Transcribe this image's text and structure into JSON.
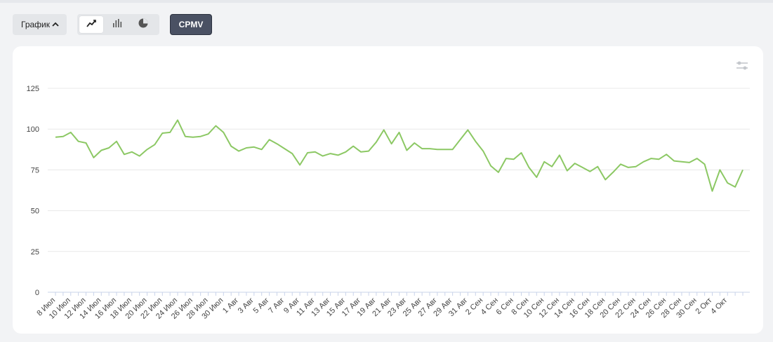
{
  "toolbar": {
    "view_label": "График",
    "chart_modes": [
      "line-chart-icon",
      "bar-chart-icon",
      "pie-chart-icon"
    ],
    "active_mode": "line-chart-icon",
    "metric_label": "CPMV"
  },
  "colors": {
    "line": "#8cc864",
    "grid": "#e8e8e8",
    "axis": "#c9d3ea",
    "metric_bg": "#4a5163"
  },
  "chart_data": {
    "type": "line",
    "title": "",
    "xlabel": "",
    "ylabel": "",
    "ylim": [
      0,
      125
    ],
    "yticks": [
      0,
      25,
      50,
      75,
      100,
      125
    ],
    "grid": true,
    "x_tick_labels": [
      "8 Июл",
      "10 Июл",
      "12 Июл",
      "14 Июл",
      "16 Июл",
      "18 Июл",
      "20 Июл",
      "22 Июл",
      "24 Июл",
      "26 Июл",
      "28 Июл",
      "30 Июл",
      "1 Авг",
      "3 Авг",
      "5 Авг",
      "7 Авг",
      "9 Авг",
      "11 Авг",
      "13 Авг",
      "15 Авг",
      "17 Авг",
      "19 Авг",
      "21 Авг",
      "23 Авг",
      "25 Авг",
      "27 Авг",
      "29 Авг",
      "31 Авг",
      "2 Сен",
      "4 Сен",
      "6 Сен",
      "8 Сен",
      "10 Сен",
      "12 Сен",
      "14 Сен",
      "16 Сен",
      "18 Сен",
      "20 Сен",
      "22 Сен",
      "24 Сен",
      "26 Сен",
      "28 Сен",
      "30 Сен",
      "2 Окт",
      "4 Окт"
    ],
    "series": [
      {
        "name": "",
        "values": [
          95,
          95.5,
          98,
          92.5,
          91.5,
          82.5,
          87,
          88.5,
          92.5,
          84.5,
          86,
          83.5,
          87.5,
          90.5,
          97.5,
          98,
          105.5,
          95.5,
          95,
          95.5,
          97,
          102,
          98,
          89.5,
          86.5,
          88.5,
          89,
          87.5,
          93.5,
          91,
          88,
          85,
          78,
          85.5,
          86,
          83.5,
          85,
          84,
          86,
          89.5,
          86,
          86.5,
          92,
          99.5,
          91,
          98,
          87,
          91.5,
          88,
          88,
          87.5,
          87.5,
          87.5,
          93.5,
          99.5,
          92.5,
          86.5,
          77.5,
          73.5,
          82,
          81.5,
          85.5,
          76.5,
          70.5,
          80,
          77,
          84,
          74.5,
          79,
          76.5,
          74,
          77,
          69,
          73.5,
          78.5,
          76.5,
          77,
          80,
          82,
          81.5,
          84.5,
          80.5,
          80,
          79.5,
          82,
          78.5,
          62,
          75,
          67,
          64.5,
          75
        ]
      }
    ]
  }
}
